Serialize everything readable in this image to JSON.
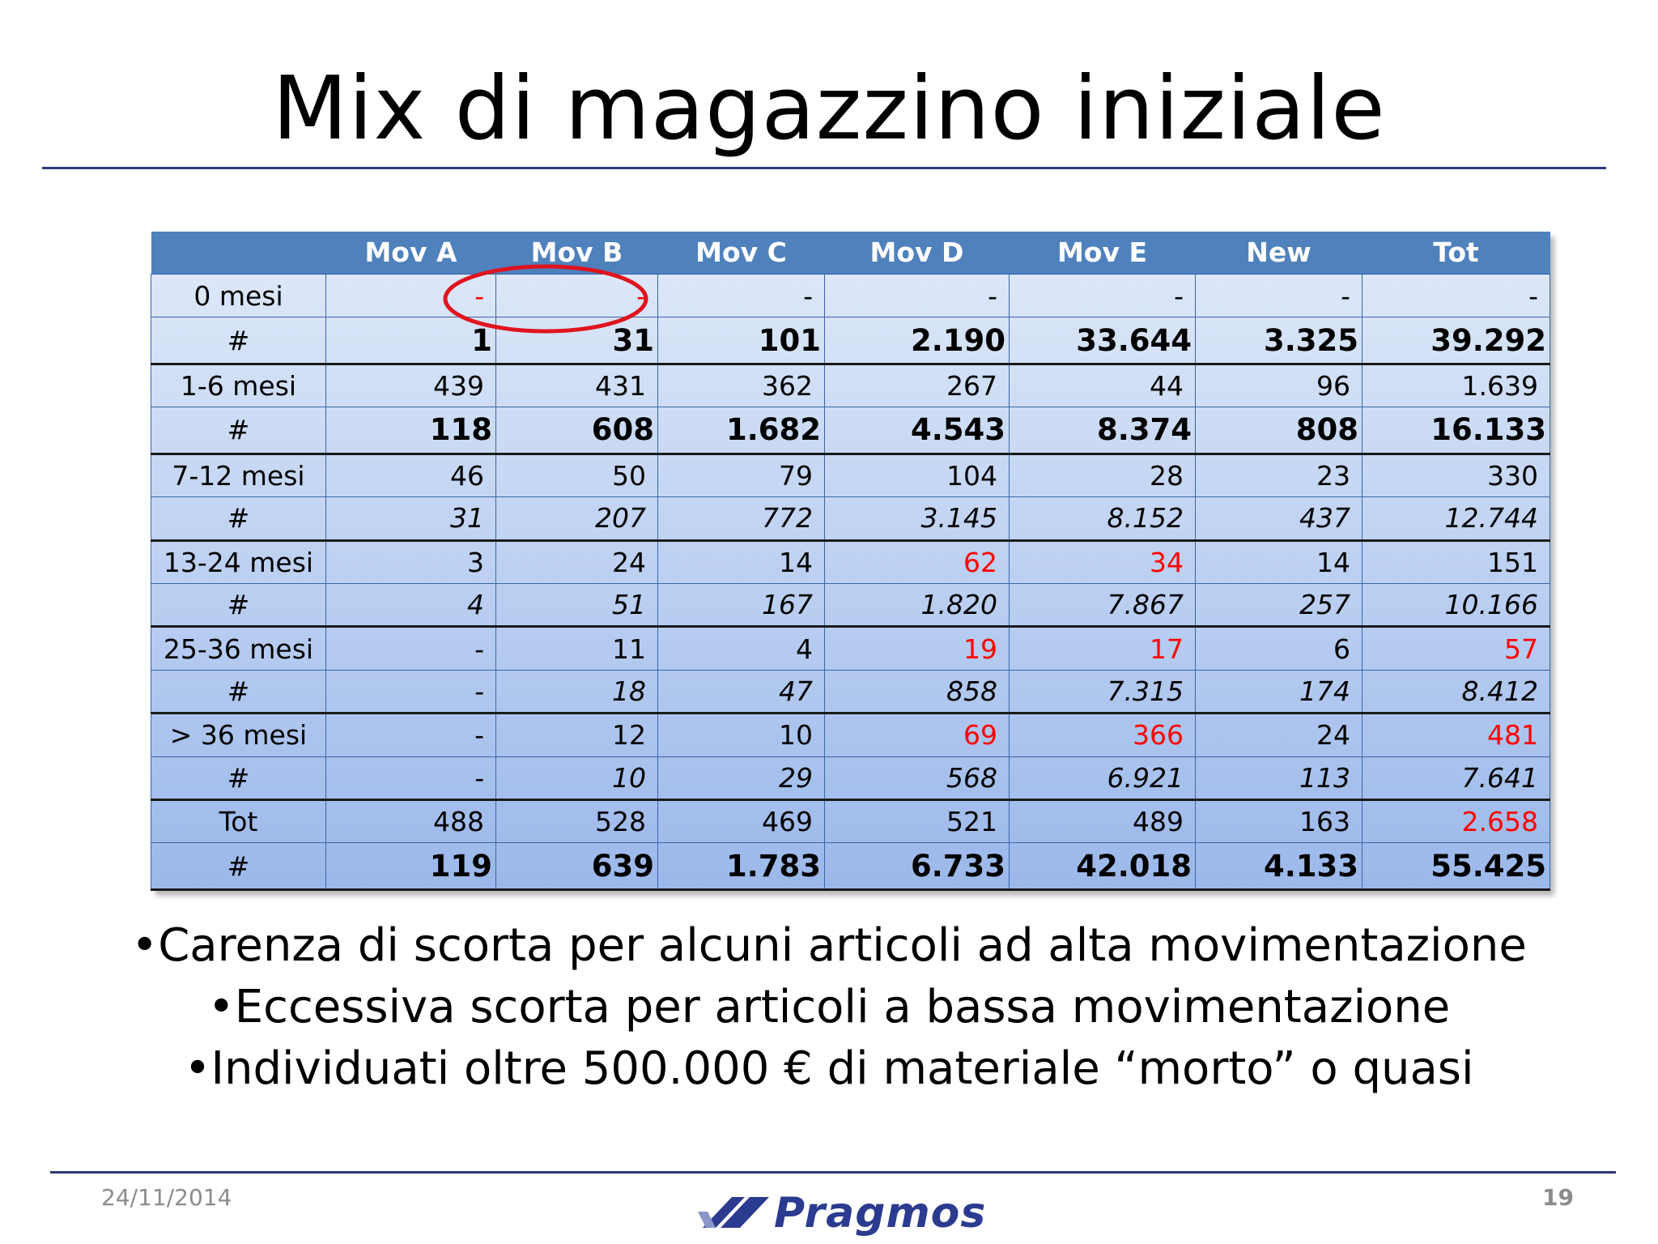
{
  "slide": {
    "title": "Mix di magazzino iniziale",
    "date": "24/11/2014",
    "page_number": "19",
    "logo_text": "Pragmos"
  },
  "table": {
    "headers": [
      "",
      "Mov A",
      "Mov B",
      "Mov C",
      "Mov D",
      "Mov E",
      "New",
      "Tot"
    ],
    "rows": [
      {
        "cells": [
          "0 mesi",
          "-",
          "-",
          "-",
          "-",
          "-",
          "-",
          "-"
        ],
        "red": [
          1,
          2
        ]
      },
      {
        "cells": [
          "#",
          "1",
          "31",
          "101",
          "2.190",
          "33.644",
          "3.325",
          "39.292"
        ],
        "red": []
      },
      {
        "cells": [
          "1-6 mesi",
          "439",
          "431",
          "362",
          "267",
          "44",
          "96",
          "1.639"
        ],
        "red": []
      },
      {
        "cells": [
          "#",
          "118",
          "608",
          "1.682",
          "4.543",
          "8.374",
          "808",
          "16.133"
        ],
        "red": []
      },
      {
        "cells": [
          "7-12 mesi",
          "46",
          "50",
          "79",
          "104",
          "28",
          "23",
          "330"
        ],
        "red": []
      },
      {
        "cells": [
          "#",
          "31",
          "207",
          "772",
          "3.145",
          "8.152",
          "437",
          "12.744"
        ],
        "red": []
      },
      {
        "cells": [
          "13-24 mesi",
          "3",
          "24",
          "14",
          "62",
          "34",
          "14",
          "151"
        ],
        "red": [
          4,
          5
        ]
      },
      {
        "cells": [
          "#",
          "4",
          "51",
          "167",
          "1.820",
          "7.867",
          "257",
          "10.166"
        ],
        "red": []
      },
      {
        "cells": [
          "25-36 mesi",
          "-",
          "11",
          "4",
          "19",
          "17",
          "6",
          "57"
        ],
        "red": [
          4,
          5,
          7
        ]
      },
      {
        "cells": [
          "#",
          "-",
          "18",
          "47",
          "858",
          "7.315",
          "174",
          "8.412"
        ],
        "red": []
      },
      {
        "cells": [
          "> 36 mesi",
          "-",
          "12",
          "10",
          "69",
          "366",
          "24",
          "481"
        ],
        "red": [
          4,
          5,
          7
        ]
      },
      {
        "cells": [
          "#",
          "-",
          "10",
          "29",
          "568",
          "6.921",
          "113",
          "7.641"
        ],
        "red": []
      },
      {
        "cells": [
          "Tot",
          "488",
          "528",
          "469",
          "521",
          "489",
          "163",
          "2.658"
        ],
        "red": [
          7
        ]
      },
      {
        "cells": [
          "#",
          "119",
          "639",
          "1.783",
          "6.733",
          "42.018",
          "4.133",
          "55.425"
        ],
        "red": []
      }
    ]
  },
  "bullets": [
    "•Carenza di scorta per alcuni articoli ad alta movimentazione",
    "•Eccessiva scorta per articoli a bassa movimentazione",
    "•Individuati oltre 500.000 € di materiale “morto” o quasi"
  ],
  "colors": {
    "header_bg": "#4f81bd",
    "row_gradient_top": "#dce7f8",
    "row_gradient_bottom": "#9bb8ea",
    "highlight_red": "#ff0000",
    "rule_navy": "#2f3a78",
    "logo_blue": "#2b3b8f"
  }
}
